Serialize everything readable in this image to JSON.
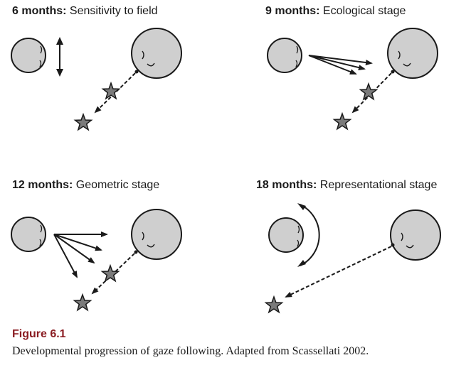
{
  "panels": [
    {
      "age": "6 months:",
      "stage": "Sensitivity to field"
    },
    {
      "age": "9 months:",
      "stage": "Ecological stage"
    },
    {
      "age": "12 months:",
      "stage": "Geometric stage"
    },
    {
      "age": "18 months:",
      "stage": "Representational stage"
    }
  ],
  "figure": {
    "label": "Figure 6.1",
    "caption": "Developmental progression of gaze following. Adapted from Scassellati 2002."
  },
  "colors": {
    "head_fill": "#cfcfcf",
    "star_fill": "#7a7a7a",
    "stroke": "#1a1a1a",
    "label_accent": "#8a1c22"
  }
}
